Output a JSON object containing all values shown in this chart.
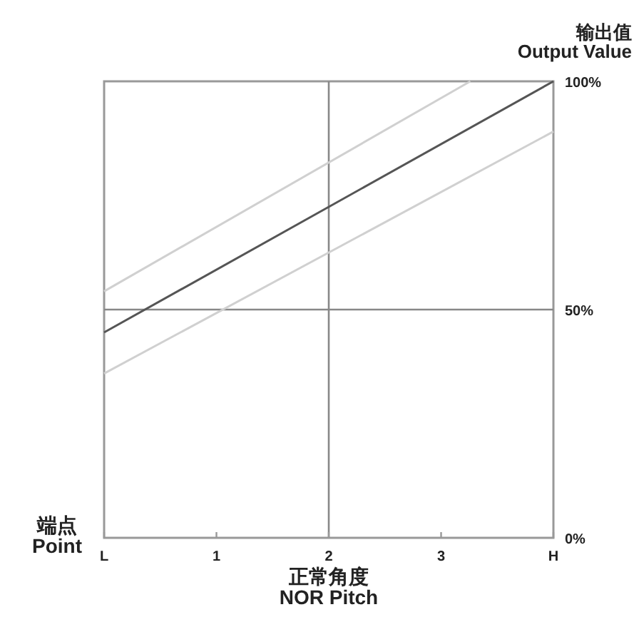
{
  "chart_data": {
    "type": "line",
    "ylabel": "输出值\nOutput Value",
    "xlabel": "正常角度\nNOR Pitch",
    "annotations": [
      "端点\nPoint"
    ],
    "xlim": [
      0,
      4
    ],
    "ylim": [
      0,
      100
    ],
    "xticks": [
      {
        "value": 0,
        "label": "L"
      },
      1,
      2,
      3,
      {
        "value": 4,
        "label": "H"
      }
    ],
    "yticks": [
      {
        "value": 0,
        "label": "0%"
      },
      {
        "value": 50,
        "label": "50%"
      },
      {
        "value": 100,
        "label": "100%"
      }
    ],
    "series": [
      {
        "color": "#d0d0d0",
        "x": [
          0,
          3.26
        ],
        "values": [
          54,
          100
        ]
      },
      {
        "color": "#555555",
        "x": [
          0,
          4
        ],
        "values": [
          45,
          100
        ]
      },
      {
        "color": "#d0d0d0",
        "x": [
          0,
          4
        ],
        "values": [
          36,
          89
        ]
      }
    ],
    "ref_lines": [
      {
        "axis": "x",
        "value": 2,
        "color": "#888888"
      },
      {
        "axis": "y",
        "value": 50,
        "color": "#888888"
      }
    ],
    "grid": false
  }
}
